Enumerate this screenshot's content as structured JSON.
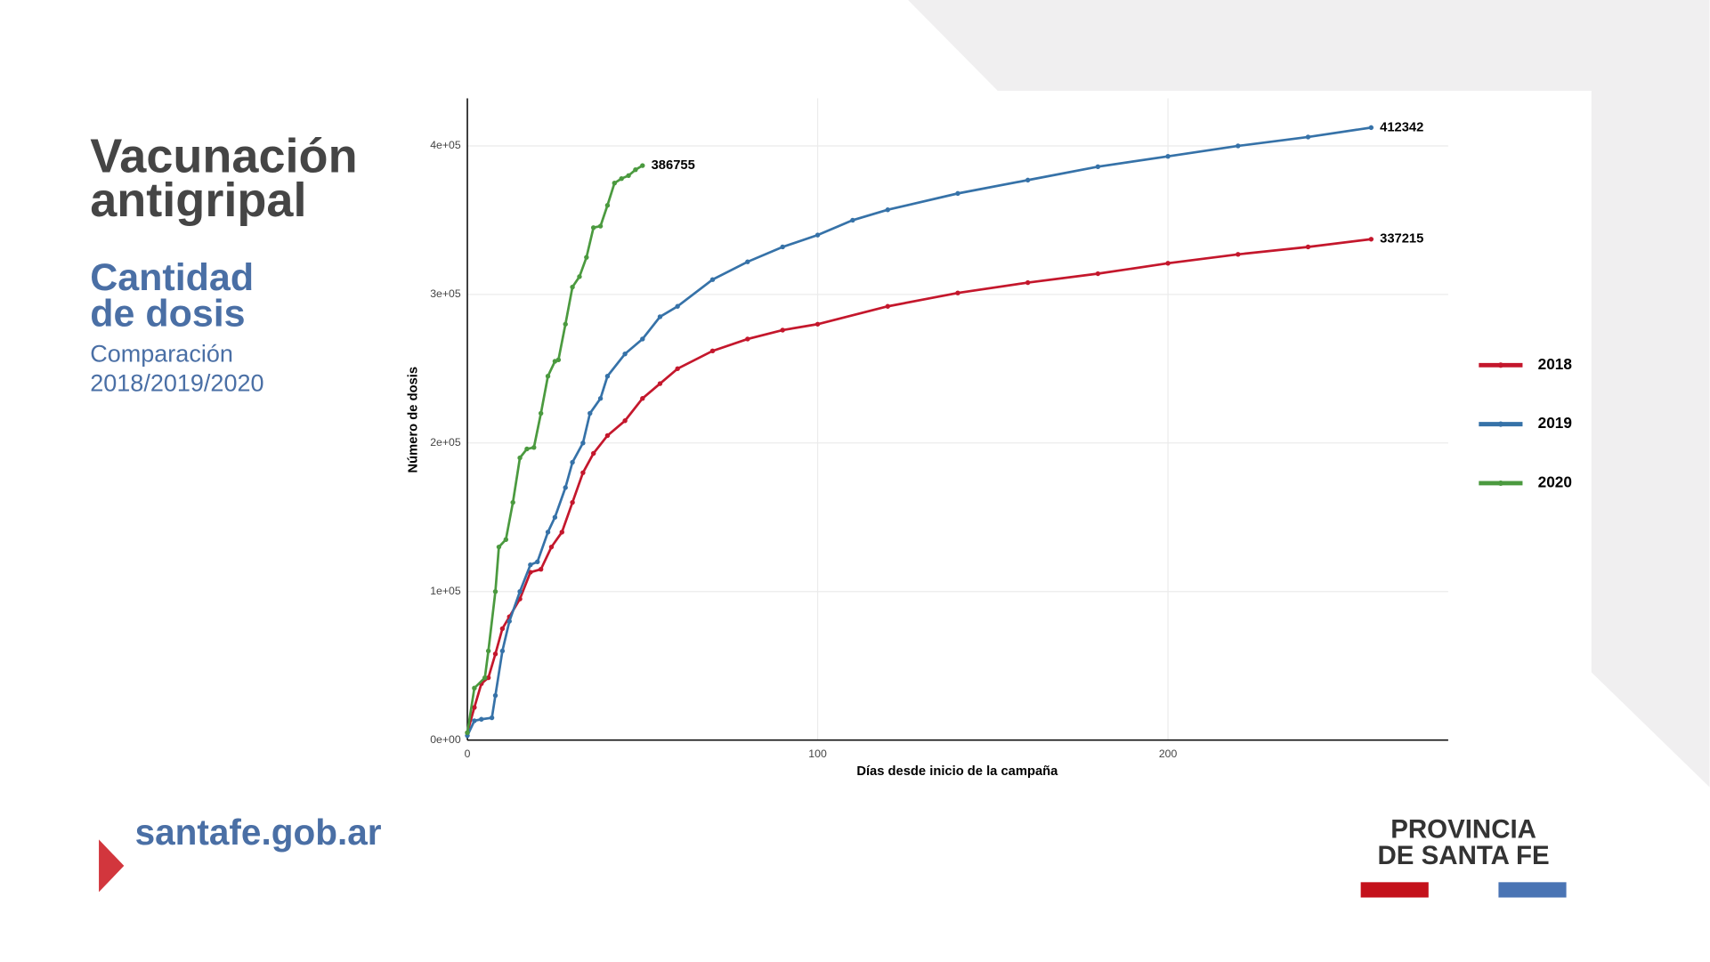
{
  "slide": {
    "title_line1": "Vacunación",
    "title_line2": "antigripal",
    "heading_line1": "Cantidad",
    "heading_line2": "de dosis",
    "subheading_line1": "Comparación",
    "subheading_line2": "2018/2019/2020",
    "site": "santafe.gob.ar",
    "brand_line1": "PROVINCIA",
    "brand_line2": "DE SANTA FE"
  },
  "chart_data": {
    "type": "line",
    "x_label": "Días desde inicio de la campaña",
    "y_label": "Número de dosis",
    "xlim": [
      0,
      280
    ],
    "xticks": [
      0,
      100,
      200
    ],
    "ylim": [
      0,
      432000
    ],
    "yticks": [
      {
        "value": 0,
        "label": "0e+00"
      },
      {
        "value": 100000,
        "label": "1e+05"
      },
      {
        "value": 200000,
        "label": "2e+05"
      },
      {
        "value": 300000,
        "label": "3e+05"
      },
      {
        "value": 400000,
        "label": "4e+05"
      }
    ],
    "grid": true,
    "legend": "right",
    "series": [
      {
        "name": "2018",
        "color": "#c4172c",
        "x": [
          0,
          2,
          4,
          6,
          8,
          10,
          12,
          15,
          18,
          21,
          24,
          27,
          30,
          33,
          36,
          40,
          45,
          50,
          55,
          60,
          70,
          80,
          90,
          100,
          120,
          140,
          160,
          180,
          200,
          220,
          240,
          258
        ],
        "values": [
          5000,
          22000,
          38000,
          42000,
          58000,
          75000,
          83000,
          95000,
          113000,
          115000,
          130000,
          140000,
          160000,
          180000,
          193000,
          205000,
          215000,
          230000,
          240000,
          250000,
          262000,
          270000,
          276000,
          280000,
          292000,
          301000,
          308000,
          314000,
          321000,
          327000,
          332000,
          337215
        ]
      },
      {
        "name": "2019",
        "color": "#3672a8",
        "x": [
          0,
          2,
          4,
          7,
          8,
          10,
          12,
          15,
          18,
          20,
          23,
          25,
          28,
          30,
          33,
          35,
          38,
          40,
          45,
          50,
          55,
          60,
          70,
          80,
          90,
          100,
          110,
          120,
          140,
          160,
          180,
          200,
          220,
          240,
          258
        ],
        "values": [
          3000,
          13000,
          14000,
          15000,
          30000,
          60000,
          80000,
          100000,
          118000,
          120000,
          140000,
          150000,
          170000,
          187000,
          200000,
          220000,
          230000,
          245000,
          260000,
          270000,
          285000,
          292000,
          310000,
          322000,
          332000,
          340000,
          350000,
          357000,
          368000,
          377000,
          386000,
          393000,
          400000,
          406000,
          412342
        ]
      },
      {
        "name": "2020",
        "color": "#4b9a3f",
        "x": [
          0,
          2,
          5,
          6,
          8,
          9,
          11,
          13,
          15,
          17,
          19,
          21,
          23,
          25,
          26,
          28,
          30,
          32,
          34,
          36,
          38,
          40,
          42,
          44,
          46,
          48,
          50
        ],
        "values": [
          5000,
          35000,
          42000,
          60000,
          100000,
          130000,
          135000,
          160000,
          190000,
          196000,
          197000,
          220000,
          245000,
          255000,
          256000,
          280000,
          305000,
          312000,
          325000,
          345000,
          346000,
          360000,
          375000,
          378000,
          380000,
          384000,
          386755
        ]
      }
    ]
  }
}
